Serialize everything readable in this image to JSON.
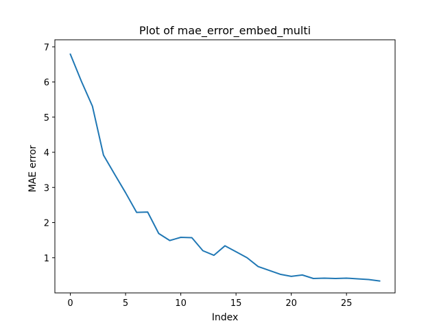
{
  "chart_data": {
    "type": "line",
    "title": "Plot of mae_error_embed_multi",
    "xlabel": "Index",
    "ylabel": "MAE error",
    "xlim": [
      -1.4,
      29.4
    ],
    "ylim": [
      -0.0,
      7.2
    ],
    "xticks": [
      0,
      5,
      10,
      15,
      20,
      25
    ],
    "yticks": [
      1,
      2,
      3,
      4,
      5,
      6,
      7
    ],
    "grid": false,
    "series": [
      {
        "color": "#1f77b4",
        "x": [
          0,
          1,
          2,
          3,
          4,
          5,
          6,
          7,
          8,
          9,
          10,
          11,
          12,
          13,
          14,
          15,
          16,
          17,
          18,
          19,
          20,
          21,
          22,
          23,
          24,
          25,
          26,
          27,
          28
        ],
        "y": [
          6.79,
          6.02,
          5.31,
          3.92,
          3.38,
          2.85,
          2.29,
          2.3,
          1.69,
          1.49,
          1.58,
          1.57,
          1.2,
          1.07,
          1.34,
          1.17,
          1.0,
          0.75,
          0.64,
          0.53,
          0.47,
          0.51,
          0.41,
          0.42,
          0.41,
          0.42,
          0.4,
          0.38,
          0.34
        ]
      }
    ]
  }
}
